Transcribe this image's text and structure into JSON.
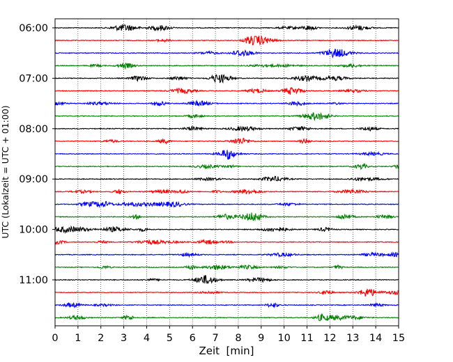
{
  "chart_data": {
    "type": "line",
    "title": "",
    "xlabel": "Zeit  [min]",
    "ylabel": "UTC (Lokalzeit = UTC + 01:00)",
    "xlim": [
      0,
      15
    ],
    "x_ticks": [
      "0",
      "1",
      "2",
      "3",
      "4",
      "5",
      "6",
      "7",
      "8",
      "9",
      "10",
      "11",
      "12",
      "13",
      "14",
      "15"
    ],
    "y_ticks": [
      "06:00",
      "07:00",
      "08:00",
      "09:00",
      "10:00",
      "11:00"
    ],
    "grid": "vertical dotted at each minute",
    "trace_interval_minutes": 15,
    "trace_start_times": [
      "06:00",
      "06:15",
      "06:30",
      "06:45",
      "07:00",
      "07:15",
      "07:30",
      "07:45",
      "08:00",
      "08:15",
      "08:30",
      "08:45",
      "09:00",
      "09:15",
      "09:30",
      "09:45",
      "10:00",
      "10:15",
      "10:30",
      "10:45",
      "11:00",
      "11:15",
      "11:30",
      "11:45"
    ],
    "trace_colors": [
      "#000000",
      "#ff0000",
      "#0000ff",
      "#008000"
    ]
  }
}
